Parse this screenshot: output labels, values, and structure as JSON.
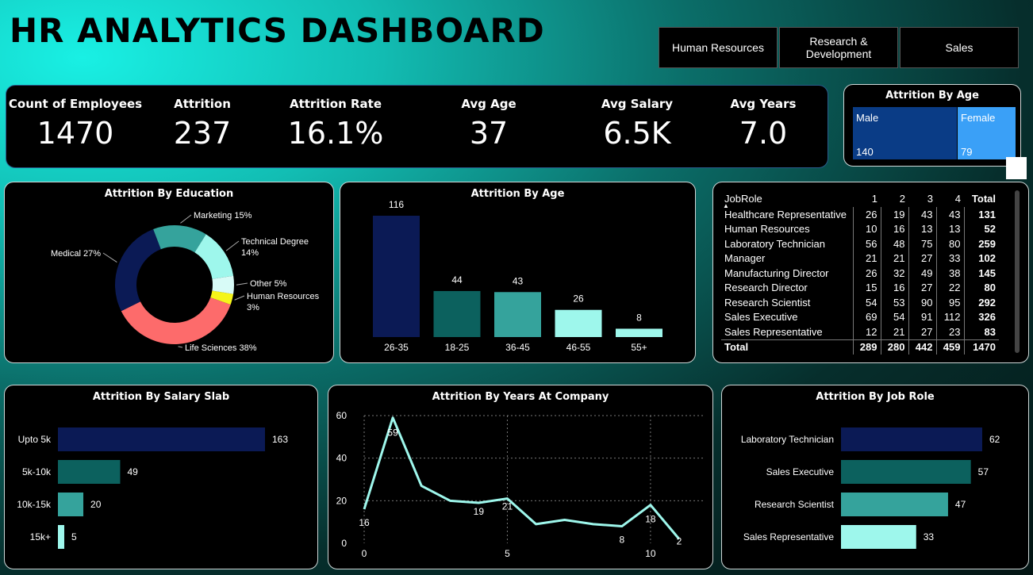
{
  "title": "HR ANALYTICS DASHBOARD",
  "slicers": [
    "Human Resources",
    "Research & Development",
    "Sales"
  ],
  "kpis": [
    {
      "label": "Count of Employees",
      "value": "1470"
    },
    {
      "label": "Attrition",
      "value": "237"
    },
    {
      "label": "Attrition Rate",
      "value": "16.1%"
    },
    {
      "label": "Avg Age",
      "value": "37"
    },
    {
      "label": "Avg Salary",
      "value": "6.5K"
    },
    {
      "label": "Avg Years",
      "value": "7.0"
    }
  ],
  "colors": {
    "navy": "#0b1a55",
    "teal_dark": "#0c615e",
    "teal": "#35a39c",
    "aqua": "#9ef7ec",
    "salmon": "#fd6b6b",
    "yellow": "#f5f51a",
    "male": "#0a3c86",
    "female": "#3aa0f7"
  },
  "chart_data": [
    {
      "type": "treemap",
      "title": "Attrition By Age",
      "categories": [
        "Male",
        "Female"
      ],
      "values": [
        140,
        79
      ]
    },
    {
      "type": "pie",
      "title": "Attrition By Education",
      "categories": [
        "Life Sciences",
        "Medical",
        "Marketing",
        "Technical Degree",
        "Other",
        "Human Resources"
      ],
      "values": [
        38,
        27,
        15,
        14,
        5,
        3
      ],
      "labels": [
        "Life Sciences 38%",
        "Medical 27%",
        "Marketing 15%",
        "Technical Degree 14%",
        "Other 5%",
        "Human Resources 3%"
      ],
      "colors": [
        "#fd6b6b",
        "#0b1a55",
        "#35a39c",
        "#9ef7ec",
        "#d8fbf7",
        "#f5f51a"
      ]
    },
    {
      "type": "bar",
      "title": "Attrition By Age",
      "categories": [
        "26-35",
        "18-25",
        "36-45",
        "46-55",
        "55+"
      ],
      "values": [
        116,
        44,
        43,
        26,
        8
      ],
      "colors": [
        "#0b1a55",
        "#0c615e",
        "#35a39c",
        "#9ef7ec",
        "#9ef7ec"
      ]
    },
    {
      "type": "table",
      "columns": [
        "JobRole",
        "1",
        "2",
        "3",
        "4",
        "Total"
      ],
      "rows": [
        [
          "Healthcare Representative",
          "26",
          "19",
          "43",
          "43",
          "131"
        ],
        [
          "Human Resources",
          "10",
          "16",
          "13",
          "13",
          "52"
        ],
        [
          "Laboratory Technician",
          "56",
          "48",
          "75",
          "80",
          "259"
        ],
        [
          "Manager",
          "21",
          "21",
          "27",
          "33",
          "102"
        ],
        [
          "Manufacturing Director",
          "26",
          "32",
          "49",
          "38",
          "145"
        ],
        [
          "Research Director",
          "15",
          "16",
          "27",
          "22",
          "80"
        ],
        [
          "Research Scientist",
          "54",
          "53",
          "90",
          "95",
          "292"
        ],
        [
          "Sales Executive",
          "69",
          "54",
          "91",
          "112",
          "326"
        ],
        [
          "Sales Representative",
          "12",
          "21",
          "27",
          "23",
          "83"
        ]
      ],
      "total": [
        "Total",
        "289",
        "280",
        "442",
        "459",
        "1470"
      ]
    },
    {
      "type": "bar",
      "orientation": "horizontal",
      "title": "Attrition By Salary Slab",
      "categories": [
        "Upto 5k",
        "5k-10k",
        "10k-15k",
        "15k+"
      ],
      "values": [
        163,
        49,
        20,
        5
      ],
      "colors": [
        "#0b1a55",
        "#0c615e",
        "#35a39c",
        "#9ef7ec"
      ]
    },
    {
      "type": "line",
      "title": "Attrition By Years At Company",
      "x": [
        0,
        1,
        2,
        3,
        4,
        5,
        6,
        7,
        8,
        9,
        10,
        11
      ],
      "values": [
        16,
        59,
        27,
        20,
        19,
        21,
        9,
        11,
        9,
        8,
        18,
        2
      ],
      "labeled_points": [
        0,
        1,
        4,
        5,
        9,
        10,
        11
      ],
      "ylim": [
        0,
        60
      ],
      "yticks": [
        0,
        20,
        40,
        60
      ],
      "xticks": [
        0,
        5,
        10
      ],
      "color": "#9ef7ec"
    },
    {
      "type": "bar",
      "orientation": "horizontal",
      "title": "Attrition By Job Role",
      "categories": [
        "Laboratory Technician",
        "Sales Executive",
        "Research Scientist",
        "Sales Representative"
      ],
      "values": [
        62,
        57,
        47,
        33
      ],
      "colors": [
        "#0b1a55",
        "#0c615e",
        "#35a39c",
        "#9ef7ec"
      ]
    }
  ]
}
